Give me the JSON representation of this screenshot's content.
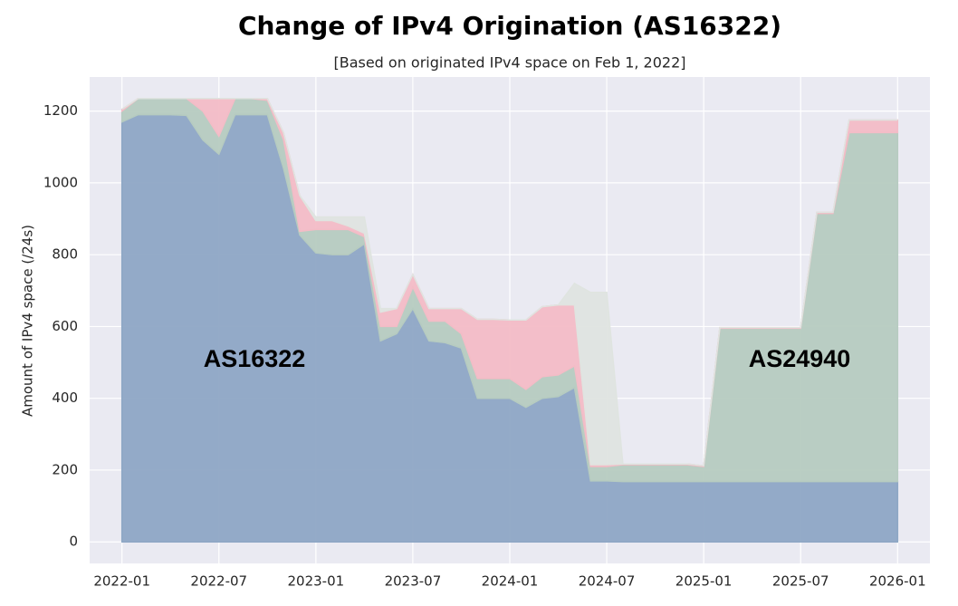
{
  "chart_data": {
    "type": "stacked_area",
    "title": "Change of IPv4 Origination (AS16322)",
    "subtitle": "[Based on originated IPv4 space on Feb 1, 2022]",
    "y_label": "Amount of IPv4 space (/24s)",
    "x": [
      "2022-01",
      "2022-02",
      "2022-03",
      "2022-04",
      "2022-05",
      "2022-06",
      "2022-07",
      "2022-08",
      "2022-09",
      "2022-10",
      "2022-11",
      "2022-12",
      "2023-01",
      "2023-02",
      "2023-03",
      "2023-04",
      "2023-05",
      "2023-06",
      "2023-07",
      "2023-08",
      "2023-09",
      "2023-10",
      "2023-11",
      "2023-12",
      "2024-01",
      "2024-02",
      "2024-03",
      "2024-04",
      "2024-05",
      "2024-06",
      "2024-07",
      "2024-08",
      "2024-09",
      "2024-10",
      "2024-11",
      "2024-12",
      "2025-01",
      "2025-02",
      "2025-03",
      "2025-04",
      "2025-05",
      "2025-06",
      "2025-07",
      "2025-08",
      "2025-09",
      "2025-10",
      "2025-11",
      "2025-12",
      "2026-01"
    ],
    "series": [
      {
        "name": "AS16322",
        "color": "#8ea7c5",
        "values": [
          1170,
          1190,
          1190,
          1190,
          1188,
          1120,
          1080,
          1190,
          1190,
          1190,
          1040,
          855,
          805,
          800,
          800,
          830,
          560,
          580,
          650,
          560,
          555,
          540,
          400,
          400,
          400,
          375,
          400,
          405,
          430,
          170,
          170,
          168,
          168,
          168,
          168,
          168,
          168,
          168,
          168,
          168,
          168,
          168,
          168,
          168,
          168,
          168,
          168,
          168,
          168
        ]
      },
      {
        "name": "AS24940",
        "color": "#b6cbc0",
        "values": [
          30,
          45,
          45,
          45,
          47,
          80,
          50,
          45,
          45,
          40,
          80,
          10,
          65,
          70,
          70,
          20,
          40,
          20,
          60,
          55,
          60,
          40,
          55,
          55,
          55,
          50,
          60,
          60,
          60,
          40,
          40,
          47,
          47,
          47,
          47,
          47,
          42,
          427,
          427,
          427,
          427,
          427,
          427,
          747,
          747,
          972,
          972,
          972,
          972
        ]
      },
      {
        "color": "#f3bcc6",
        "values": [
          5,
          0,
          0,
          0,
          0,
          35,
          105,
          0,
          0,
          5,
          20,
          100,
          25,
          25,
          10,
          10,
          40,
          50,
          35,
          35,
          35,
          70,
          165,
          165,
          163,
          193,
          195,
          195,
          170,
          5,
          5,
          2,
          2,
          2,
          2,
          2,
          2,
          2,
          2,
          2,
          2,
          2,
          2,
          3,
          3,
          35,
          35,
          35,
          35
        ]
      },
      {
        "color": "#dfe4e0",
        "values": [
          0,
          0,
          0,
          0,
          0,
          0,
          0,
          0,
          0,
          0,
          0,
          0,
          10,
          10,
          25,
          45,
          10,
          0,
          0,
          0,
          0,
          0,
          0,
          0,
          0,
          0,
          0,
          0,
          60,
          480,
          480,
          0,
          0,
          0,
          0,
          0,
          0,
          0,
          0,
          0,
          0,
          0,
          0,
          0,
          0,
          0,
          0,
          0,
          0
        ]
      }
    ],
    "xlim": [
      "2021-11",
      "2026-03"
    ],
    "xticks": [
      "2022-01",
      "2022-07",
      "2023-01",
      "2023-07",
      "2024-01",
      "2024-07",
      "2025-01",
      "2025-07",
      "2026-01"
    ],
    "ylim": [
      -60,
      1295
    ],
    "yticks": [
      0,
      200,
      400,
      600,
      800,
      1000,
      1200
    ],
    "grid": true
  }
}
